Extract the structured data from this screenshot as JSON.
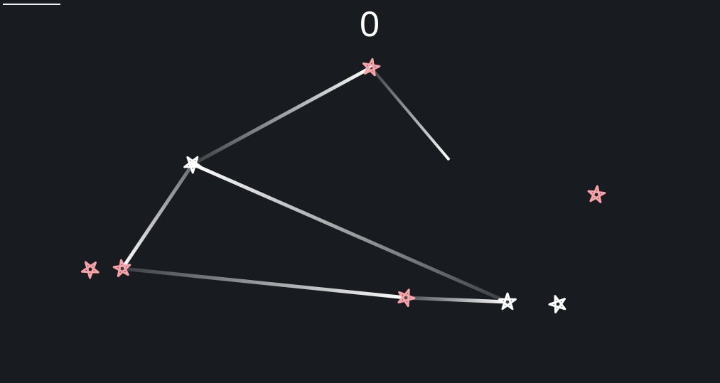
{
  "score": "0",
  "progress": 0.08,
  "colors": {
    "background": "#181b20",
    "star_pink": "#f6a3a7",
    "star_white": "#ffffff",
    "line": "#ffffff"
  },
  "stars": [
    {
      "name": "star-pink-top",
      "color": "pink"
    },
    {
      "name": "star-white-mid-left",
      "color": "white"
    },
    {
      "name": "star-pink-far-left",
      "color": "pink"
    },
    {
      "name": "star-pink-left",
      "color": "pink"
    },
    {
      "name": "star-pink-bottom-mid",
      "color": "pink"
    },
    {
      "name": "star-white-bottom-right",
      "color": "white"
    },
    {
      "name": "star-white-far-right",
      "color": "white"
    },
    {
      "name": "star-pink-right",
      "color": "pink"
    }
  ],
  "connections": [
    {
      "from": 0,
      "to": 1
    },
    {
      "from": 1,
      "to": 3
    },
    {
      "from": 3,
      "to": 4
    },
    {
      "from": 4,
      "to": 5
    },
    {
      "from": 5,
      "to": 1
    }
  ],
  "active_line_from": 0
}
